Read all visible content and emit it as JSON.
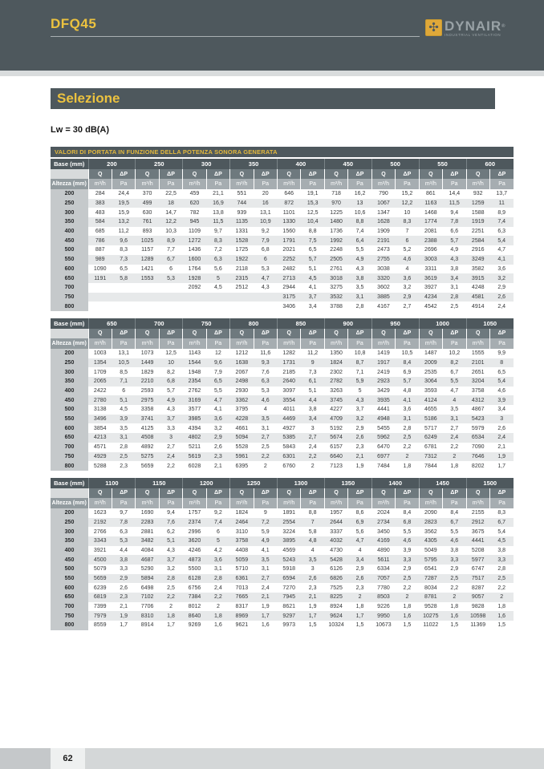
{
  "page": {
    "code": "DFQ45",
    "page_number": "62"
  },
  "logo": {
    "name": "DYNAIR",
    "reg": "®",
    "tagline": "INDUSTRIAL VENTILATION",
    "fan_icon": "✣",
    "icon_color": "#dfa839"
  },
  "section": {
    "title": "Selezione",
    "condition": "Lw = 30 dB(A)",
    "table_caption": "VALORI DI PORTATA IN FUNZIONE DELLA POTENZA SONORA GENERATA"
  },
  "colors": {
    "slate": "#4e585d",
    "accent_yellow": "#ecc23f"
  },
  "table_labels": {
    "base": "Base (mm)",
    "height": "Altezza (mm)",
    "q": "Q",
    "dp": "ΔP",
    "q_unit": "m³/h",
    "dp_unit": "Pa"
  },
  "tables": [
    {
      "bases": [
        "200",
        "250",
        "300",
        "350",
        "400",
        "450",
        "500",
        "550",
        "600"
      ],
      "rows": [
        {
          "altezza": "200",
          "values": [
            "284",
            "24,4",
            "370",
            "22,5",
            "459",
            "21,1",
            "551",
            "20",
            "646",
            "19,1",
            "718",
            "16,2",
            "790",
            "15,2",
            "861",
            "14,4",
            "932",
            "13,7"
          ]
        },
        {
          "altezza": "250",
          "values": [
            "383",
            "19,5",
            "499",
            "18",
            "620",
            "16,9",
            "744",
            "16",
            "872",
            "15,3",
            "970",
            "13",
            "1067",
            "12,2",
            "1163",
            "11,5",
            "1259",
            "11"
          ]
        },
        {
          "altezza": "300",
          "values": [
            "483",
            "15,9",
            "630",
            "14,7",
            "782",
            "13,8",
            "939",
            "13,1",
            "1101",
            "12,5",
            "1225",
            "10,6",
            "1347",
            "10",
            "1468",
            "9,4",
            "1588",
            "8,9"
          ]
        },
        {
          "altezza": "350",
          "values": [
            "584",
            "13,2",
            "761",
            "12,2",
            "945",
            "11,5",
            "1135",
            "10,9",
            "1330",
            "10,4",
            "1480",
            "8,8",
            "1628",
            "8,3",
            "1774",
            "7,8",
            "1919",
            "7,4"
          ]
        },
        {
          "altezza": "400",
          "values": [
            "685",
            "11,2",
            "893",
            "10,3",
            "1109",
            "9,7",
            "1331",
            "9,2",
            "1560",
            "8,8",
            "1736",
            "7,4",
            "1909",
            "7",
            "2081",
            "6,6",
            "2251",
            "6,3"
          ]
        },
        {
          "altezza": "450",
          "values": [
            "786",
            "9,6",
            "1025",
            "8,9",
            "1272",
            "8,3",
            "1528",
            "7,9",
            "1791",
            "7,5",
            "1992",
            "6,4",
            "2191",
            "6",
            "2388",
            "5,7",
            "2584",
            "5,4"
          ]
        },
        {
          "altezza": "500",
          "values": [
            "887",
            "8,3",
            "1157",
            "7,7",
            "1436",
            "7,2",
            "1725",
            "6,8",
            "2021",
            "6,5",
            "2248",
            "5,5",
            "2473",
            "5,2",
            "2696",
            "4,9",
            "2916",
            "4,7"
          ]
        },
        {
          "altezza": "550",
          "values": [
            "989",
            "7,3",
            "1289",
            "6,7",
            "1600",
            "6,3",
            "1922",
            "6",
            "2252",
            "5,7",
            "2505",
            "4,9",
            "2755",
            "4,6",
            "3003",
            "4,3",
            "3249",
            "4,1"
          ]
        },
        {
          "altezza": "600",
          "values": [
            "1090",
            "6,5",
            "1421",
            "6",
            "1764",
            "5,6",
            "2118",
            "5,3",
            "2482",
            "5,1",
            "2761",
            "4,3",
            "3038",
            "4",
            "3311",
            "3,8",
            "3582",
            "3,6"
          ]
        },
        {
          "altezza": "650",
          "values": [
            "1191",
            "5,8",
            "1553",
            "5,3",
            "1928",
            "5",
            "2315",
            "4,7",
            "2713",
            "4,5",
            "3018",
            "3,8",
            "3320",
            "3,6",
            "3619",
            "3,4",
            "3915",
            "3,2"
          ]
        },
        {
          "altezza": "700",
          "values": [
            "",
            "",
            "",
            "",
            "2092",
            "4,5",
            "2512",
            "4,3",
            "2944",
            "4,1",
            "3275",
            "3,5",
            "3602",
            "3,2",
            "3927",
            "3,1",
            "4248",
            "2,9"
          ]
        },
        {
          "altezza": "750",
          "values": [
            "",
            "",
            "",
            "",
            "",
            "",
            "",
            "",
            "3175",
            "3,7",
            "3532",
            "3,1",
            "3885",
            "2,9",
            "4234",
            "2,8",
            "4581",
            "2,6"
          ]
        },
        {
          "altezza": "800",
          "values": [
            "",
            "",
            "",
            "",
            "",
            "",
            "",
            "",
            "3406",
            "3,4",
            "3788",
            "2,8",
            "4167",
            "2,7",
            "4542",
            "2,5",
            "4914",
            "2,4"
          ]
        }
      ]
    },
    {
      "bases": [
        "650",
        "700",
        "750",
        "800",
        "850",
        "900",
        "950",
        "1000",
        "1050"
      ],
      "rows": [
        {
          "altezza": "200",
          "values": [
            "1003",
            "13,1",
            "1073",
            "12,5",
            "1143",
            "12",
            "1212",
            "11,6",
            "1282",
            "11,2",
            "1350",
            "10,8",
            "1419",
            "10,5",
            "1487",
            "10,2",
            "1555",
            "9,9"
          ]
        },
        {
          "altezza": "250",
          "values": [
            "1354",
            "10,5",
            "1449",
            "10",
            "1544",
            "9,6",
            "1638",
            "9,3",
            "1731",
            "9",
            "1824",
            "8,7",
            "1917",
            "8,4",
            "2009",
            "8,2",
            "2101",
            "8"
          ]
        },
        {
          "altezza": "300",
          "values": [
            "1709",
            "8,5",
            "1829",
            "8,2",
            "1948",
            "7,9",
            "2067",
            "7,6",
            "2185",
            "7,3",
            "2302",
            "7,1",
            "2419",
            "6,9",
            "2535",
            "6,7",
            "2651",
            "6,5"
          ]
        },
        {
          "altezza": "350",
          "values": [
            "2065",
            "7,1",
            "2210",
            "6,8",
            "2354",
            "6,5",
            "2498",
            "6,3",
            "2640",
            "6,1",
            "2782",
            "5,9",
            "2923",
            "5,7",
            "3064",
            "5,5",
            "3204",
            "5,4"
          ]
        },
        {
          "altezza": "400",
          "values": [
            "2422",
            "6",
            "2593",
            "5,7",
            "2762",
            "5,5",
            "2930",
            "5,3",
            "3097",
            "5,1",
            "3263",
            "5",
            "3429",
            "4,8",
            "3593",
            "4,7",
            "3758",
            "4,6"
          ]
        },
        {
          "altezza": "450",
          "values": [
            "2780",
            "5,1",
            "2975",
            "4,9",
            "3169",
            "4,7",
            "3362",
            "4,6",
            "3554",
            "4,4",
            "3745",
            "4,3",
            "3935",
            "4,1",
            "4124",
            "4",
            "4312",
            "3,9"
          ]
        },
        {
          "altezza": "500",
          "values": [
            "3138",
            "4,5",
            "3358",
            "4,3",
            "3577",
            "4,1",
            "3795",
            "4",
            "4011",
            "3,8",
            "4227",
            "3,7",
            "4441",
            "3,6",
            "4655",
            "3,5",
            "4867",
            "3,4"
          ]
        },
        {
          "altezza": "550",
          "values": [
            "3496",
            "3,9",
            "3741",
            "3,7",
            "3985",
            "3,6",
            "4228",
            "3,5",
            "4469",
            "3,4",
            "4709",
            "3,2",
            "4948",
            "3,1",
            "5186",
            "3,1",
            "5423",
            "3"
          ]
        },
        {
          "altezza": "600",
          "values": [
            "3854",
            "3,5",
            "4125",
            "3,3",
            "4394",
            "3,2",
            "4661",
            "3,1",
            "4927",
            "3",
            "5192",
            "2,9",
            "5455",
            "2,8",
            "5717",
            "2,7",
            "5979",
            "2,6"
          ]
        },
        {
          "altezza": "650",
          "values": [
            "4213",
            "3,1",
            "4508",
            "3",
            "4802",
            "2,9",
            "5094",
            "2,7",
            "5385",
            "2,7",
            "5674",
            "2,6",
            "5962",
            "2,5",
            "6249",
            "2,4",
            "6534",
            "2,4"
          ]
        },
        {
          "altezza": "700",
          "values": [
            "4571",
            "2,8",
            "4892",
            "2,7",
            "5211",
            "2,6",
            "5528",
            "2,5",
            "5843",
            "2,4",
            "6157",
            "2,3",
            "6470",
            "2,2",
            "6781",
            "2,2",
            "7090",
            "2,1"
          ]
        },
        {
          "altezza": "750",
          "values": [
            "4929",
            "2,5",
            "5275",
            "2,4",
            "5619",
            "2,3",
            "5961",
            "2,2",
            "6301",
            "2,2",
            "6640",
            "2,1",
            "6977",
            "2",
            "7312",
            "2",
            "7646",
            "1,9"
          ]
        },
        {
          "altezza": "800",
          "values": [
            "5288",
            "2,3",
            "5659",
            "2,2",
            "6028",
            "2,1",
            "6395",
            "2",
            "6760",
            "2",
            "7123",
            "1,9",
            "7484",
            "1,8",
            "7844",
            "1,8",
            "8202",
            "1,7"
          ]
        }
      ]
    },
    {
      "bases": [
        "1100",
        "1150",
        "1200",
        "1250",
        "1300",
        "1350",
        "1400",
        "1450",
        "1500"
      ],
      "rows": [
        {
          "altezza": "200",
          "values": [
            "1623",
            "9,7",
            "1690",
            "9,4",
            "1757",
            "9,2",
            "1824",
            "9",
            "1891",
            "8,8",
            "1957",
            "8,6",
            "2024",
            "8,4",
            "2090",
            "8,4",
            "2155",
            "8,3"
          ]
        },
        {
          "altezza": "250",
          "values": [
            "2192",
            "7,8",
            "2283",
            "7,6",
            "2374",
            "7,4",
            "2464",
            "7,2",
            "2554",
            "7",
            "2644",
            "6,9",
            "2734",
            "6,8",
            "2823",
            "6,7",
            "2912",
            "6,7"
          ]
        },
        {
          "altezza": "300",
          "values": [
            "2766",
            "6,3",
            "2881",
            "6,2",
            "2996",
            "6",
            "3110",
            "5,9",
            "3224",
            "5,8",
            "3337",
            "5,6",
            "3450",
            "5,5",
            "3562",
            "5,5",
            "3675",
            "5,4"
          ]
        },
        {
          "altezza": "350",
          "values": [
            "3343",
            "5,3",
            "3482",
            "5,1",
            "3620",
            "5",
            "3758",
            "4,9",
            "3895",
            "4,8",
            "4032",
            "4,7",
            "4169",
            "4,6",
            "4305",
            "4,6",
            "4441",
            "4,5"
          ]
        },
        {
          "altezza": "400",
          "values": [
            "3921",
            "4,4",
            "4084",
            "4,3",
            "4246",
            "4,2",
            "4408",
            "4,1",
            "4569",
            "4",
            "4730",
            "4",
            "4890",
            "3,9",
            "5049",
            "3,8",
            "5208",
            "3,8"
          ]
        },
        {
          "altezza": "450",
          "values": [
            "4500",
            "3,8",
            "4687",
            "3,7",
            "4873",
            "3,6",
            "5059",
            "3,5",
            "5243",
            "3,5",
            "5428",
            "3,4",
            "5611",
            "3,3",
            "5795",
            "3,3",
            "5977",
            "3,3"
          ]
        },
        {
          "altezza": "500",
          "values": [
            "5079",
            "3,3",
            "5290",
            "3,2",
            "5500",
            "3,1",
            "5710",
            "3,1",
            "5918",
            "3",
            "6126",
            "2,9",
            "6334",
            "2,9",
            "6541",
            "2,9",
            "6747",
            "2,8"
          ]
        },
        {
          "altezza": "550",
          "values": [
            "5659",
            "2,9",
            "5894",
            "2,8",
            "6128",
            "2,8",
            "6361",
            "2,7",
            "6594",
            "2,6",
            "6826",
            "2,6",
            "7057",
            "2,5",
            "7287",
            "2,5",
            "7517",
            "2,5"
          ]
        },
        {
          "altezza": "600",
          "values": [
            "6239",
            "2,6",
            "6498",
            "2,5",
            "6756",
            "2,4",
            "7013",
            "2,4",
            "7270",
            "2,3",
            "7525",
            "2,3",
            "7780",
            "2,2",
            "8034",
            "2,2",
            "8287",
            "2,2"
          ]
        },
        {
          "altezza": "650",
          "values": [
            "6819",
            "2,3",
            "7102",
            "2,2",
            "7384",
            "2,2",
            "7665",
            "2,1",
            "7945",
            "2,1",
            "8225",
            "2",
            "8503",
            "2",
            "8781",
            "2",
            "9057",
            "2"
          ]
        },
        {
          "altezza": "700",
          "values": [
            "7399",
            "2,1",
            "7706",
            "2",
            "8012",
            "2",
            "8317",
            "1,9",
            "8621",
            "1,9",
            "8924",
            "1,8",
            "9226",
            "1,8",
            "9528",
            "1,8",
            "9828",
            "1,8"
          ]
        },
        {
          "altezza": "750",
          "values": [
            "7979",
            "1,9",
            "8310",
            "1,8",
            "8640",
            "1,8",
            "8969",
            "1,7",
            "9297",
            "1,7",
            "9624",
            "1,7",
            "9950",
            "1,6",
            "10275",
            "1,6",
            "10598",
            "1,6"
          ]
        },
        {
          "altezza": "800",
          "values": [
            "8559",
            "1,7",
            "8914",
            "1,7",
            "9269",
            "1,6",
            "9621",
            "1,6",
            "9973",
            "1,5",
            "10324",
            "1,5",
            "10673",
            "1,5",
            "11022",
            "1,5",
            "11369",
            "1,5"
          ]
        }
      ]
    }
  ]
}
